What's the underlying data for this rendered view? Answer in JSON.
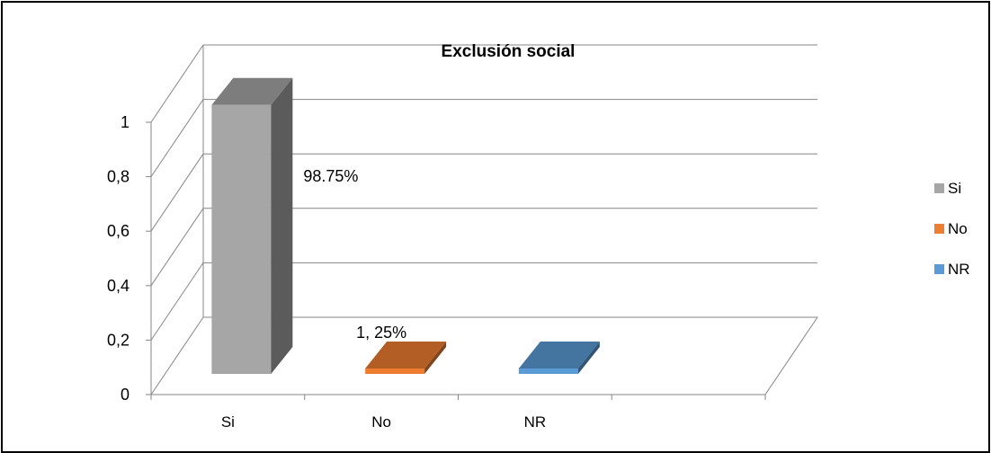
{
  "chart_data": {
    "type": "bar",
    "title": "Exclusión social",
    "categories": [
      "Si",
      "No",
      "NR"
    ],
    "values": [
      0.9875,
      0.0125,
      0
    ],
    "data_labels": [
      "98.75%",
      "1, 25%",
      ""
    ],
    "series_colors": {
      "Si": "#a6a6a6",
      "No": "#ed7d31",
      "NR": "#5b9bd5"
    },
    "yticks": [
      "0",
      "0,2",
      "0,4",
      "0,6",
      "0,8",
      "1"
    ],
    "ylim": [
      0,
      1
    ],
    "grid": true,
    "legend": {
      "position": "right",
      "entries": [
        "Si",
        "No",
        "NR"
      ]
    },
    "style": "3d-column"
  }
}
